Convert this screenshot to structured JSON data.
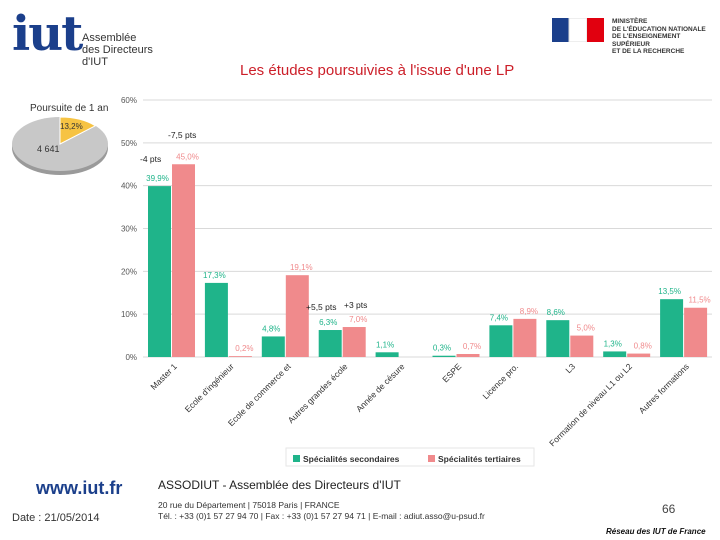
{
  "header": {
    "logo_text": "iut",
    "assoc_lines": [
      "Assemblée",
      "des Directeurs",
      "d'IUT"
    ],
    "ministry_lines": [
      "MINISTÈRE",
      "DE L'ÉDUCATION NATIONALE",
      "DE L'ENSEIGNEMENT SUPÉRIEUR",
      "ET DE LA RECHERCHE"
    ],
    "flag_colors": [
      "#1b3f8b",
      "#ffffff",
      "#e1000f"
    ]
  },
  "slide_title": "Les études poursuivies à l'issue d'une LP",
  "inset": {
    "title": "Poursuite de 1 an",
    "slice_label": "13,2%",
    "count_label": "4 641",
    "slice_percent": 13.2,
    "colors": {
      "slice": "#f6c343",
      "rest": "#c8c8c8"
    }
  },
  "chart_data": {
    "type": "bar",
    "categories": [
      "Master 1",
      "Ecole d'ingénieur",
      "Ecole de commerce et",
      "Autres grandes école",
      "Année de césure",
      "ESPE",
      "Licence pro.",
      "L3",
      "Formation de niveau L1 ou L2",
      "Autres formations"
    ],
    "series": [
      {
        "name": "Spécialités secondaires",
        "color": "#1fb48a",
        "values": [
          39.9,
          17.3,
          4.8,
          6.3,
          1.1,
          0.3,
          7.4,
          8.6,
          1.3,
          13.5
        ],
        "labels": [
          "39,9%",
          "17,3%",
          "4,8%",
          "6,3%",
          "1,1%",
          "0,3%",
          "7,4%",
          "8,6%",
          "1,3%",
          "13,5%"
        ]
      },
      {
        "name": "Spécialités tertiaires",
        "color": "#f08a8c",
        "values": [
          45.0,
          0.2,
          19.1,
          7.0,
          0.0,
          0.7,
          8.9,
          5.0,
          0.8,
          11.5
        ],
        "labels": [
          "45,0%",
          "0,2%",
          "19,1%",
          "7,0%",
          "",
          "0,7%",
          "8,9%",
          "5,0%",
          "0,8%",
          "11,5%"
        ]
      }
    ],
    "y_ticks": [
      "0%",
      "10%",
      "20%",
      "30%",
      "40%",
      "50%",
      "60%"
    ],
    "ylim": [
      0,
      60
    ],
    "annotations": [
      "-7,5 pts",
      "-4 pts",
      "+5,5 pts",
      "+3 pts"
    ],
    "legend_position": "bottom"
  },
  "footer": {
    "url": "www.iut.fr",
    "date": "Date : 21/05/2014",
    "org": "ASSODIUT - Assemblée des Directeurs d'IUT",
    "address": "20 rue du Département | 75018 Paris | FRANCE",
    "contact": "Tél. : +33 (0)1 57 27 94 70 | Fax : +33 (0)1 57 27 94 71 | E-mail : adiut.asso@u-psud.fr",
    "page": "66",
    "brand": "Réseau des IUT de France"
  }
}
